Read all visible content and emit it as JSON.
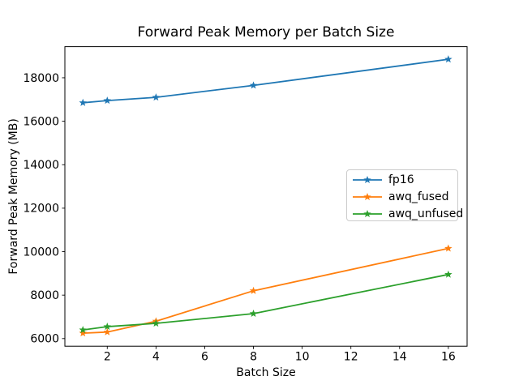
{
  "chart_data": {
    "type": "line",
    "title": "Forward Peak Memory per Batch Size",
    "xlabel": "Batch Size",
    "ylabel": "Forward Peak Memory (MB)",
    "x": [
      1,
      2,
      4,
      8,
      16
    ],
    "series": [
      {
        "name": "fp16",
        "color": "#1f77b4",
        "marker": "star",
        "values": [
          16850,
          16950,
          17100,
          17650,
          18850
        ]
      },
      {
        "name": "awq_fused",
        "color": "#ff7f0e",
        "marker": "star",
        "values": [
          6250,
          6300,
          6800,
          8200,
          10150
        ]
      },
      {
        "name": "awq_unfused",
        "color": "#2ca02c",
        "marker": "star",
        "values": [
          6400,
          6550,
          6700,
          7150,
          8950
        ]
      }
    ],
    "xticks": [
      2,
      4,
      6,
      8,
      10,
      12,
      14,
      16
    ],
    "yticks": [
      6000,
      8000,
      10000,
      12000,
      14000,
      16000,
      18000
    ],
    "xlim": [
      0.26,
      16.77
    ],
    "ylim": [
      5650,
      19430
    ],
    "grid": false,
    "legend": {
      "position": "center-right",
      "entries": [
        "fp16",
        "awq_fused",
        "awq_unfused"
      ]
    },
    "axis_color": "#000000",
    "background": "#ffffff"
  }
}
